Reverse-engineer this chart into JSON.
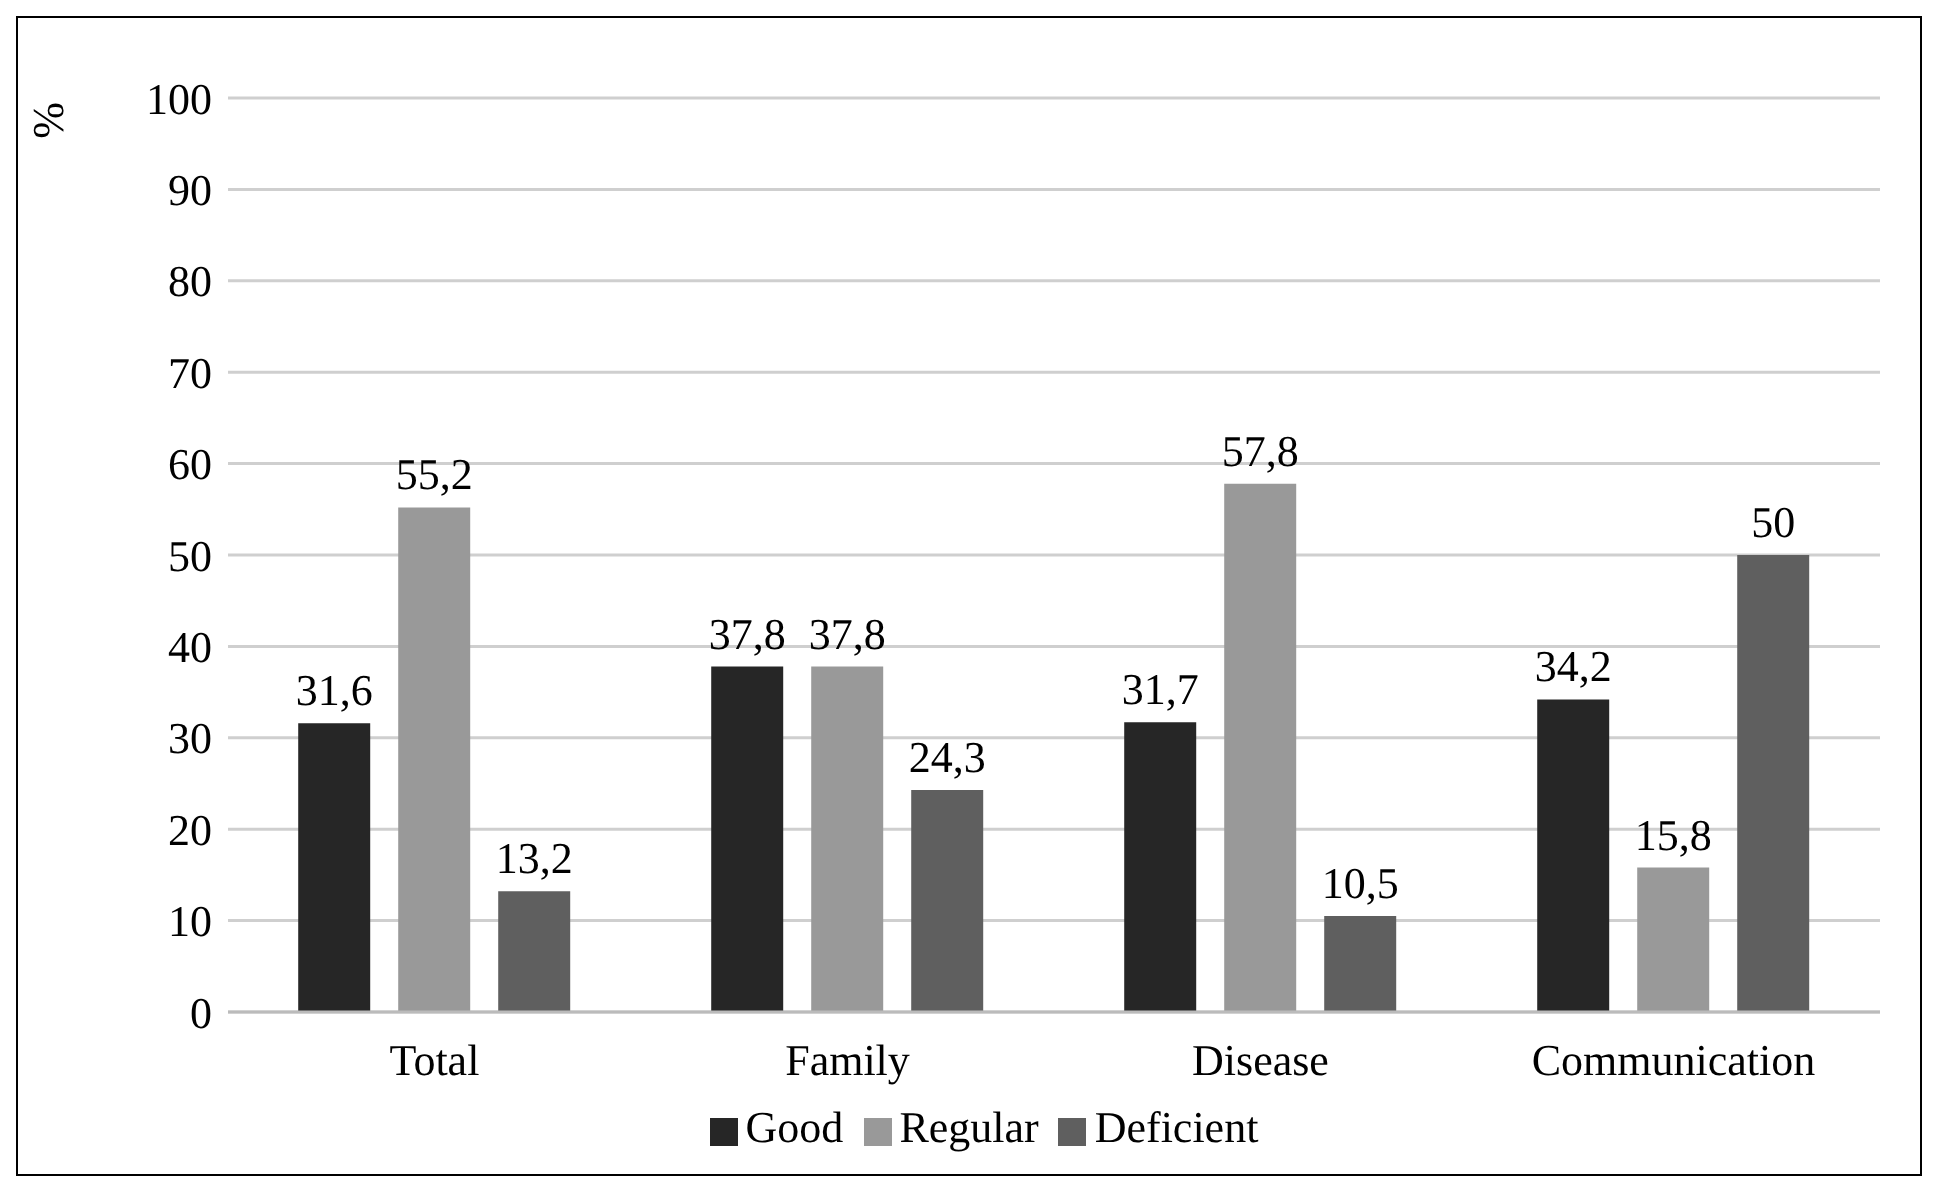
{
  "chart_data": {
    "type": "bar",
    "ylabel": "%",
    "categories": [
      "Total",
      "Family",
      "Disease",
      "Communication"
    ],
    "series": [
      {
        "name": "Good",
        "color": "#262626",
        "values": [
          31.6,
          37.8,
          31.7,
          34.2
        ],
        "value_labels": [
          "31,6",
          "37,8",
          "31,7",
          "34,2"
        ]
      },
      {
        "name": "Regular",
        "color": "#999999",
        "values": [
          55.2,
          37.8,
          57.8,
          15.8
        ],
        "value_labels": [
          "55,2",
          "37,8",
          "57,8",
          "15,8"
        ]
      },
      {
        "name": "Deficient",
        "color": "#5f5f5f",
        "values": [
          13.2,
          24.3,
          10.5,
          50
        ],
        "value_labels": [
          "13,2",
          "24,3",
          "10,5",
          "50"
        ]
      }
    ],
    "ylim": [
      0,
      100
    ],
    "yticks": [
      0,
      10,
      20,
      30,
      40,
      50,
      60,
      70,
      80,
      90,
      100
    ],
    "grid": "y",
    "legend": "bottom"
  }
}
